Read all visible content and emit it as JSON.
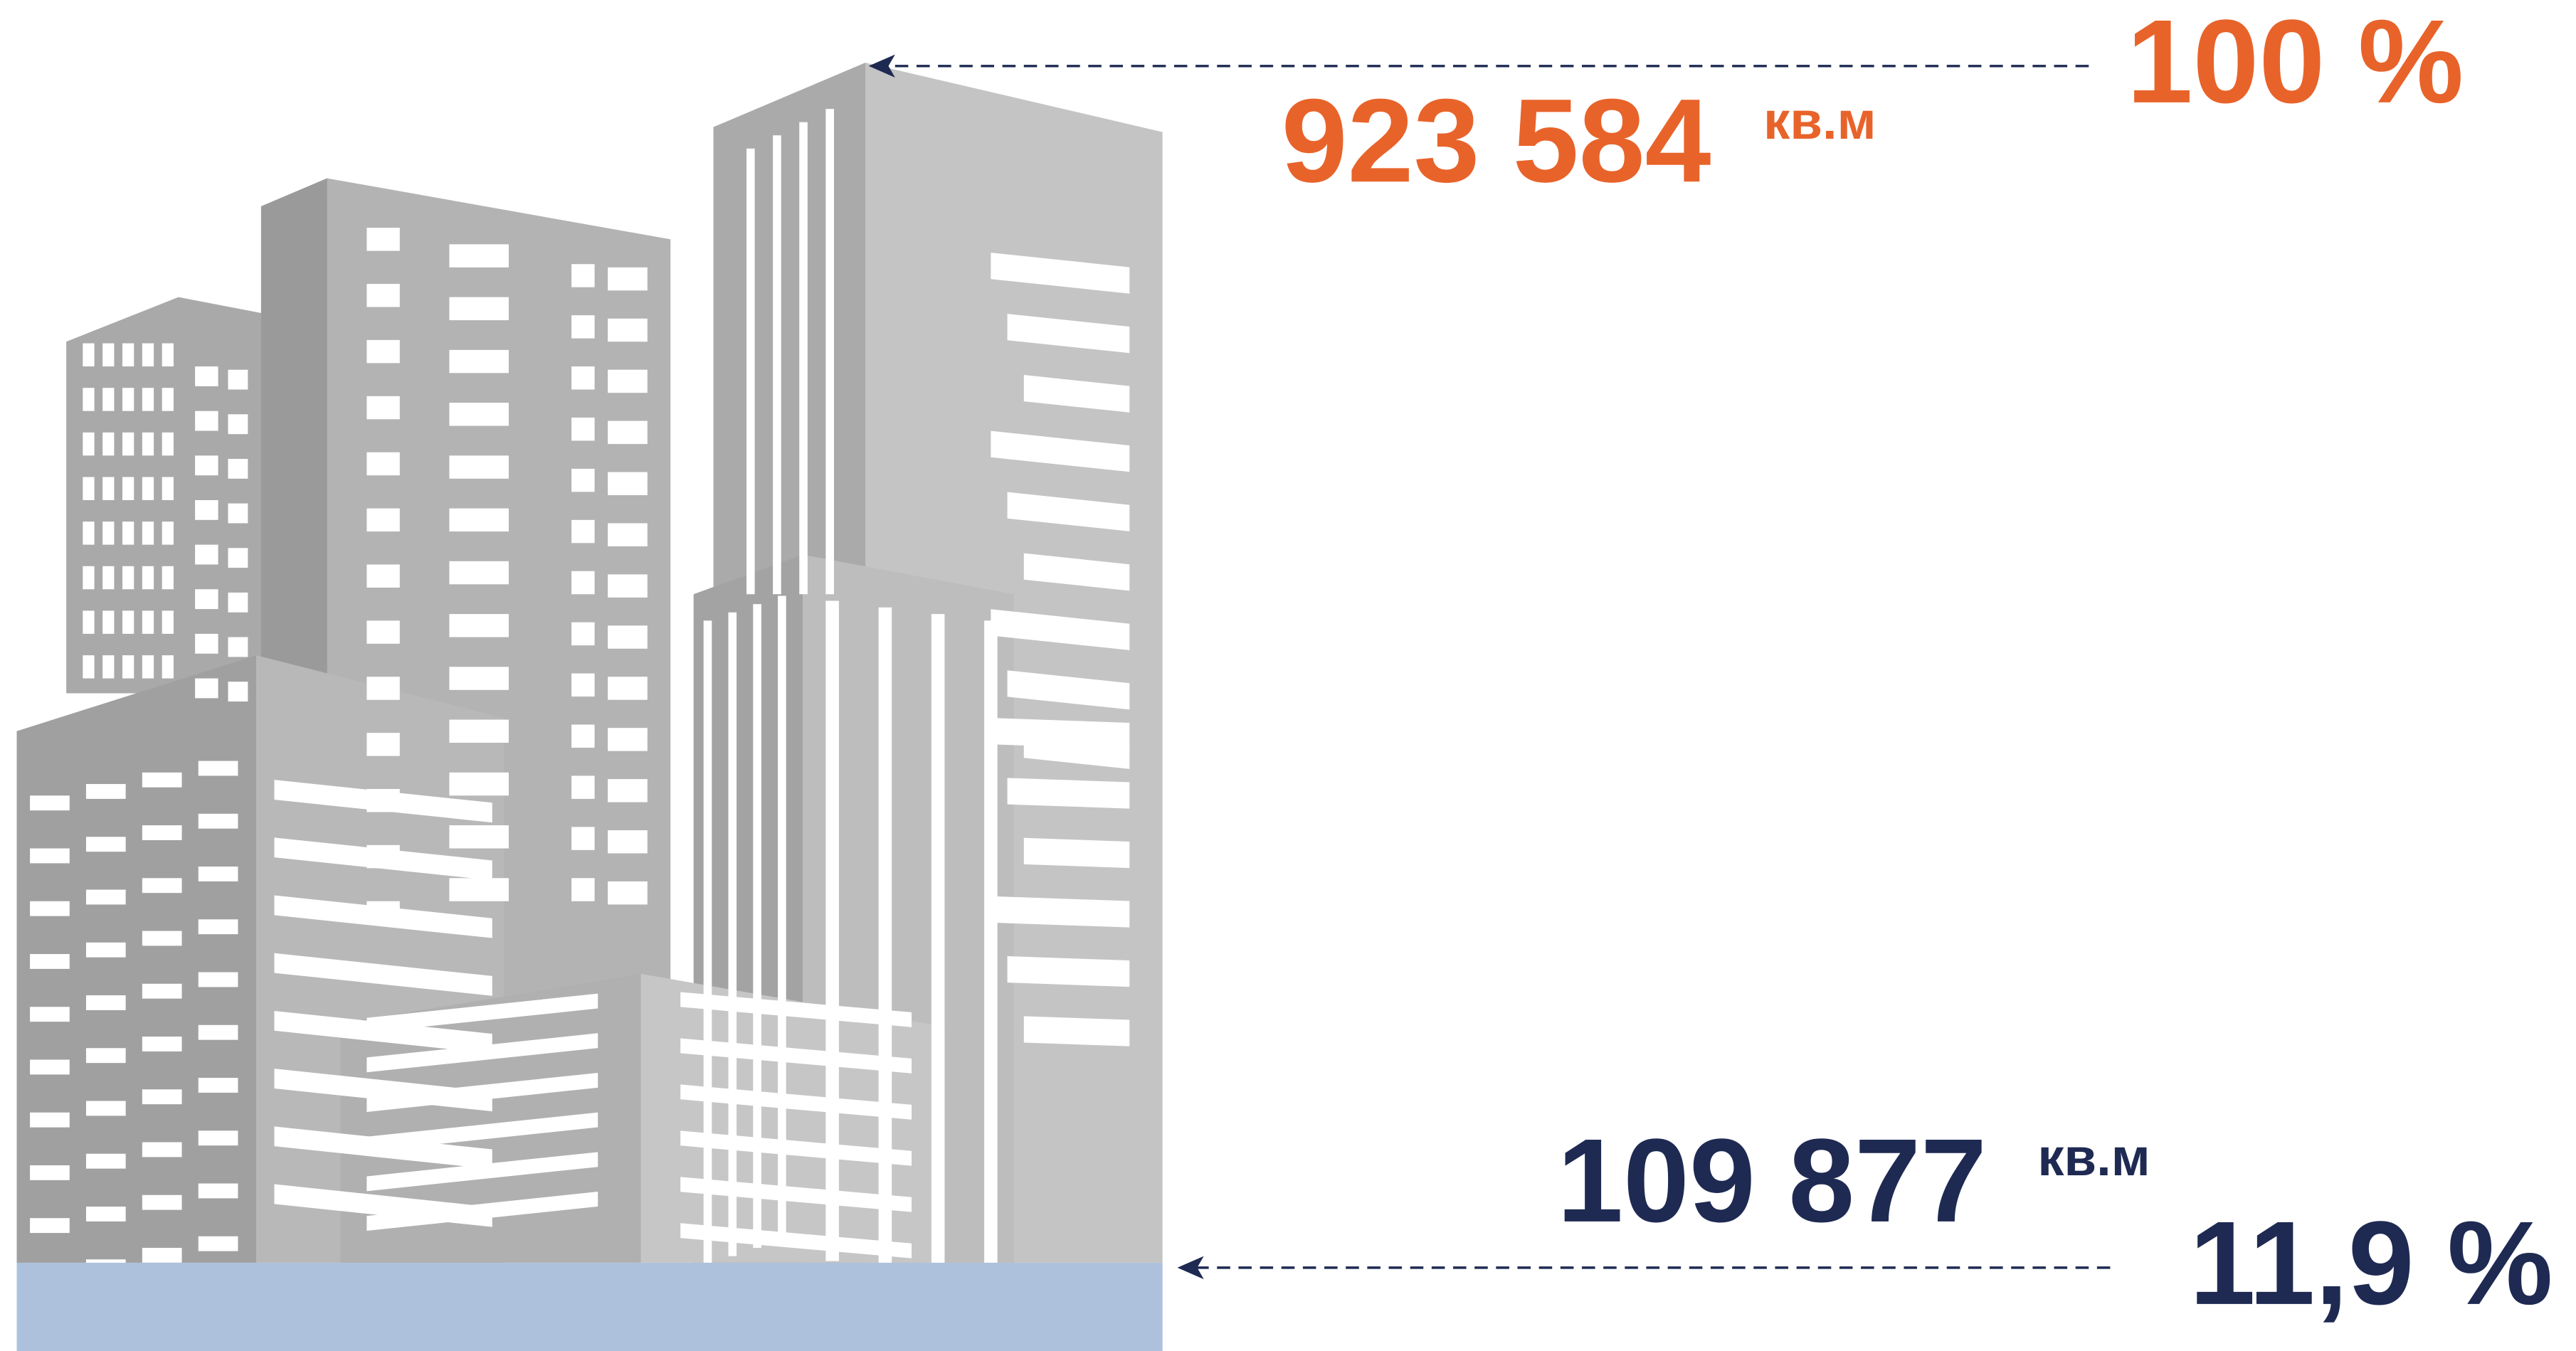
{
  "top": {
    "percent": "100 %",
    "area": "923 584",
    "unit": "кв.м"
  },
  "bottom": {
    "area": "109 877",
    "unit": "кв.м",
    "percent": "11,9 %"
  }
}
